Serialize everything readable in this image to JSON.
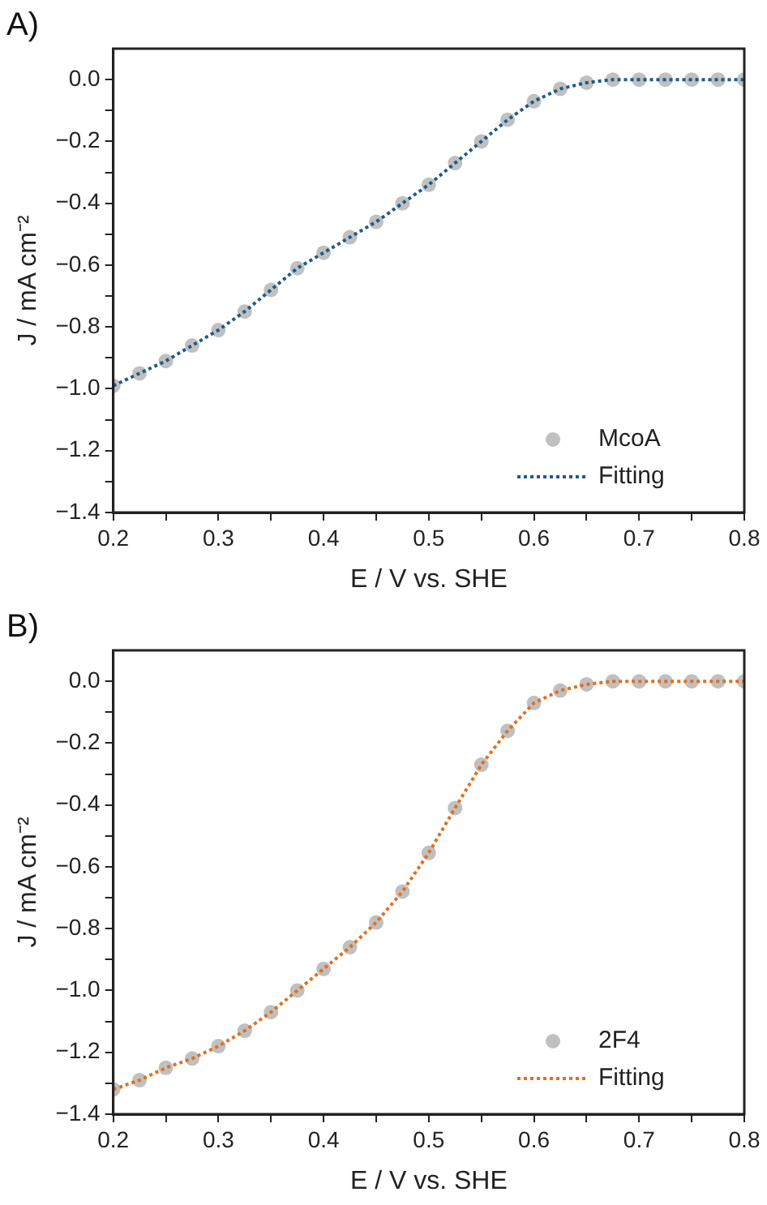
{
  "chart_data": [
    {
      "type": "line",
      "title": "A)",
      "xlabel": "E / V vs. SHE",
      "ylabel": "J / mA cm⁻²",
      "xlim": [
        0.2,
        0.8
      ],
      "ylim": [
        -1.4,
        0.1
      ],
      "xticks": [
        0.2,
        {
          "value": 0.25,
          "label": null
        },
        0.3,
        {
          "value": 0.35,
          "label": null
        },
        0.4,
        {
          "value": 0.45,
          "label": null
        },
        0.5,
        {
          "value": 0.55,
          "label": null
        },
        0.6,
        {
          "value": 0.65,
          "label": null
        },
        0.7,
        {
          "value": 0.75,
          "label": null
        },
        0.8
      ],
      "yticks": [
        {
          "value": -1.4,
          "label": "−1.4"
        },
        {
          "value": -1.3,
          "label": null
        },
        {
          "value": -1.2,
          "label": "−1.2"
        },
        {
          "value": -1.1,
          "label": null
        },
        {
          "value": -1.0,
          "label": "−1.0"
        },
        {
          "value": -0.9,
          "label": null
        },
        {
          "value": -0.8,
          "label": "−0.8"
        },
        {
          "value": -0.7,
          "label": null
        },
        {
          "value": -0.6,
          "label": "−0.6"
        },
        {
          "value": -0.5,
          "label": null
        },
        {
          "value": -0.4,
          "label": "−0.4"
        },
        {
          "value": -0.3,
          "label": null
        },
        {
          "value": -0.2,
          "label": "−0.2"
        },
        {
          "value": -0.1,
          "label": null
        },
        {
          "value": 0,
          "label": "0.0"
        }
      ],
      "grid": false,
      "legend": "bottom right",
      "x": [
        0.2,
        0.225,
        0.25,
        0.275,
        0.3,
        0.325,
        0.35,
        0.375,
        0.4,
        0.425,
        0.45,
        0.475,
        0.5,
        0.525,
        0.55,
        0.575,
        0.6,
        0.625,
        0.65,
        0.675,
        0.7,
        0.725,
        0.75,
        0.775,
        0.8
      ],
      "series": [
        {
          "name": "McoA",
          "type": "scatter",
          "marker": "circle",
          "color": "#c0c0c0",
          "values": [
            -0.99,
            -0.95,
            -0.91,
            -0.86,
            -0.81,
            -0.75,
            -0.68,
            -0.61,
            -0.56,
            -0.51,
            -0.46,
            -0.4,
            -0.34,
            -0.27,
            -0.2,
            -0.13,
            -0.07,
            -0.03,
            -0.01,
            0,
            0,
            0,
            0,
            0,
            0
          ]
        },
        {
          "name": "Fitting",
          "type": "line",
          "marker": "none",
          "line_style": "dotted",
          "color": "#1f5a8a",
          "values": [
            -0.99,
            -0.95,
            -0.91,
            -0.86,
            -0.81,
            -0.75,
            -0.68,
            -0.61,
            -0.56,
            -0.51,
            -0.46,
            -0.4,
            -0.34,
            -0.27,
            -0.2,
            -0.13,
            -0.07,
            -0.03,
            -0.01,
            0,
            0,
            0,
            0,
            0,
            0
          ]
        }
      ]
    },
    {
      "type": "line",
      "title": "B)",
      "xlabel": "E / V vs. SHE",
      "ylabel": "J / mA cm⁻²",
      "xlim": [
        0.2,
        0.8
      ],
      "ylim": [
        -1.4,
        0.1
      ],
      "xticks": [
        0.2,
        {
          "value": 0.25,
          "label": null
        },
        0.3,
        {
          "value": 0.35,
          "label": null
        },
        0.4,
        {
          "value": 0.45,
          "label": null
        },
        0.5,
        {
          "value": 0.55,
          "label": null
        },
        0.6,
        {
          "value": 0.65,
          "label": null
        },
        0.7,
        {
          "value": 0.75,
          "label": null
        },
        0.8
      ],
      "yticks": [
        {
          "value": -1.4,
          "label": "−1.4"
        },
        {
          "value": -1.3,
          "label": null
        },
        {
          "value": -1.2,
          "label": "−1.2"
        },
        {
          "value": -1.1,
          "label": null
        },
        {
          "value": -1.0,
          "label": "−1.0"
        },
        {
          "value": -0.9,
          "label": null
        },
        {
          "value": -0.8,
          "label": "−0.8"
        },
        {
          "value": -0.7,
          "label": null
        },
        {
          "value": -0.6,
          "label": "−0.6"
        },
        {
          "value": -0.5,
          "label": null
        },
        {
          "value": -0.4,
          "label": "−0.4"
        },
        {
          "value": -0.3,
          "label": null
        },
        {
          "value": -0.2,
          "label": "−0.2"
        },
        {
          "value": -0.1,
          "label": null
        },
        {
          "value": 0,
          "label": "0.0"
        }
      ],
      "grid": false,
      "legend": "bottom right",
      "x": [
        0.2,
        0.225,
        0.25,
        0.275,
        0.3,
        0.325,
        0.35,
        0.375,
        0.4,
        0.425,
        0.45,
        0.475,
        0.5,
        0.525,
        0.55,
        0.575,
        0.6,
        0.625,
        0.65,
        0.675,
        0.7,
        0.725,
        0.75,
        0.775,
        0.8
      ],
      "series": [
        {
          "name": "2F4",
          "type": "scatter",
          "marker": "circle",
          "color": "#c0c0c0",
          "values": [
            -1.32,
            -1.29,
            -1.25,
            -1.22,
            -1.18,
            -1.13,
            -1.07,
            -1.0,
            -0.93,
            -0.86,
            -0.78,
            -0.68,
            -0.555,
            -0.41,
            -0.27,
            -0.16,
            -0.07,
            -0.03,
            -0.01,
            0,
            0,
            0,
            0,
            0,
            0
          ]
        },
        {
          "name": "Fitting",
          "type": "line",
          "marker": "none",
          "line_style": "dotted",
          "color": "#e07020",
          "values": [
            -1.32,
            -1.29,
            -1.25,
            -1.22,
            -1.18,
            -1.13,
            -1.07,
            -1.0,
            -0.93,
            -0.86,
            -0.78,
            -0.68,
            -0.555,
            -0.41,
            -0.27,
            -0.16,
            -0.07,
            -0.03,
            -0.01,
            0,
            0,
            0,
            0,
            0,
            0
          ]
        }
      ]
    }
  ]
}
